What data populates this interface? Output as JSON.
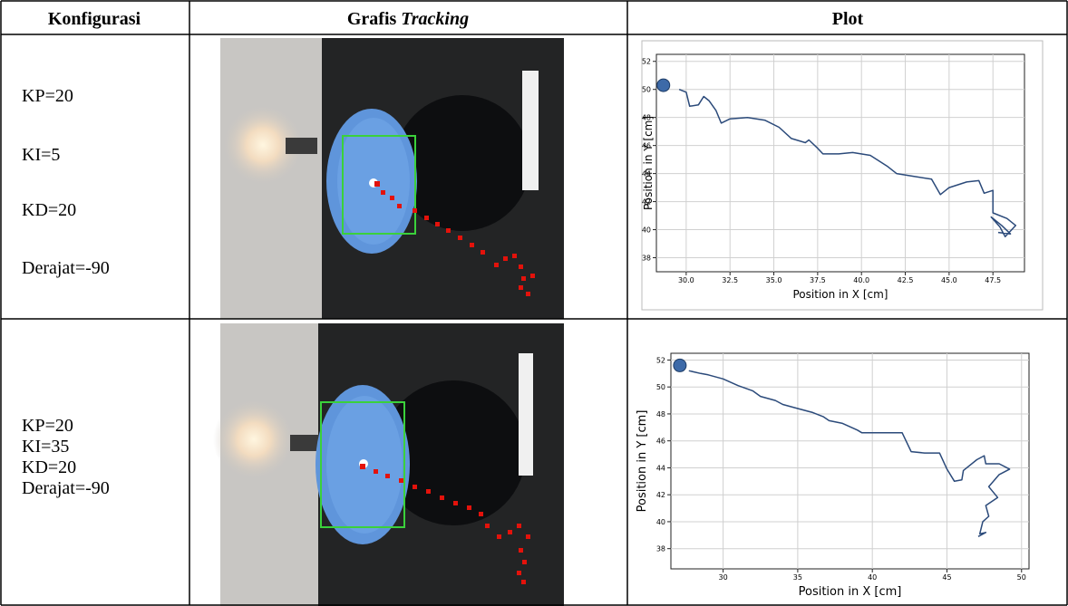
{
  "table": {
    "header": {
      "config": "Konfigurasi",
      "tracking": "Grafis",
      "tracking_italic": "Tracking",
      "plot": "Plot"
    },
    "rows": [
      {
        "config": [
          "KP=20",
          "KI=5",
          "KD=20",
          "Derajat=-90"
        ],
        "plot": {
          "type": "line",
          "x_label": "Position in X [cm]",
          "y_label": "Position in Y [cm]",
          "xlim": [
            28.3,
            49.3
          ],
          "ylim": [
            37,
            52.5
          ],
          "xticks": [
            {
              "value": 30,
              "label": "30.0"
            },
            {
              "value": 32.5,
              "label": "32.5"
            },
            {
              "value": 35,
              "label": "35.0"
            },
            {
              "value": 37.5,
              "label": "37.5"
            },
            {
              "value": 40,
              "label": "40.0"
            },
            {
              "value": 42.5,
              "label": "42.5"
            },
            {
              "value": 45,
              "label": "45.0"
            },
            {
              "value": 47.5,
              "label": "47.5"
            }
          ],
          "yticks": [
            38,
            40,
            42,
            44,
            46,
            48,
            50,
            52
          ],
          "grid": true,
          "color": "#2b4a7a",
          "marker_color": "#3d6aa8",
          "start": {
            "x": 28.7,
            "y": 50.3
          },
          "x": [
            29.6,
            30.0,
            30.2,
            30.7,
            31.0,
            31.3,
            31.7,
            32.0,
            32.5,
            33.5,
            34.5,
            35.3,
            36.0,
            36.8,
            37.0,
            37.5,
            37.8,
            38.7,
            39.5,
            40.5,
            41.5,
            42.0,
            43.0,
            44.0,
            44.5,
            45.0,
            46.0,
            46.7,
            47.0,
            47.5,
            47.5,
            48.3,
            48.8,
            48.2,
            47.9,
            47.4,
            48.0,
            48.5,
            47.8
          ],
          "y": [
            50.0,
            49.8,
            48.8,
            48.9,
            49.5,
            49.2,
            48.5,
            47.6,
            47.9,
            48.0,
            47.8,
            47.3,
            46.5,
            46.2,
            46.4,
            45.8,
            45.4,
            45.4,
            45.5,
            45.3,
            44.5,
            44.0,
            43.8,
            43.6,
            42.5,
            43.0,
            43.4,
            43.5,
            42.6,
            42.8,
            41.2,
            40.8,
            40.3,
            39.5,
            40.2,
            40.9,
            40.3,
            39.7,
            39.8
          ]
        }
      },
      {
        "config": [
          "KP=20",
          "KI=35",
          "KD=20",
          "Derajat=-90"
        ],
        "plot": {
          "type": "line",
          "x_label": "Position in X [cm]",
          "y_label": "Position in Y [cm]",
          "xlim": [
            26.5,
            50.5
          ],
          "ylim": [
            36.5,
            52.5
          ],
          "xticks": [
            30,
            35,
            40,
            45,
            50
          ],
          "yticks": [
            38,
            40,
            42,
            44,
            46,
            48,
            50,
            52
          ],
          "grid": true,
          "color": "#2b4a7a",
          "marker_color": "#3d6aa8",
          "start": {
            "x": 27.1,
            "y": 51.6
          },
          "x": [
            27.7,
            28.5,
            29.0,
            30.0,
            31.0,
            32.0,
            32.5,
            33.5,
            34.0,
            35.0,
            36.0,
            36.7,
            37.1,
            38.0,
            39.0,
            39.3,
            40.5,
            41.5,
            42.0,
            42.6,
            43.5,
            44.5,
            45.0,
            45.5,
            46.0,
            46.1,
            47.0,
            47.5,
            47.6,
            48.5,
            49.2,
            48.5,
            47.8,
            48.4,
            47.6,
            47.8,
            47.4,
            47.2,
            47.6,
            47.1
          ],
          "y": [
            51.2,
            51.0,
            50.9,
            50.6,
            50.1,
            49.7,
            49.3,
            49.0,
            48.7,
            48.4,
            48.1,
            47.8,
            47.5,
            47.3,
            46.8,
            46.6,
            46.6,
            46.6,
            46.6,
            45.2,
            45.1,
            45.1,
            43.9,
            43.0,
            43.1,
            43.8,
            44.6,
            44.9,
            44.3,
            44.3,
            43.9,
            43.5,
            42.6,
            41.8,
            41.2,
            40.4,
            40.0,
            39.1,
            39.2,
            38.9
          ]
        }
      }
    ]
  }
}
